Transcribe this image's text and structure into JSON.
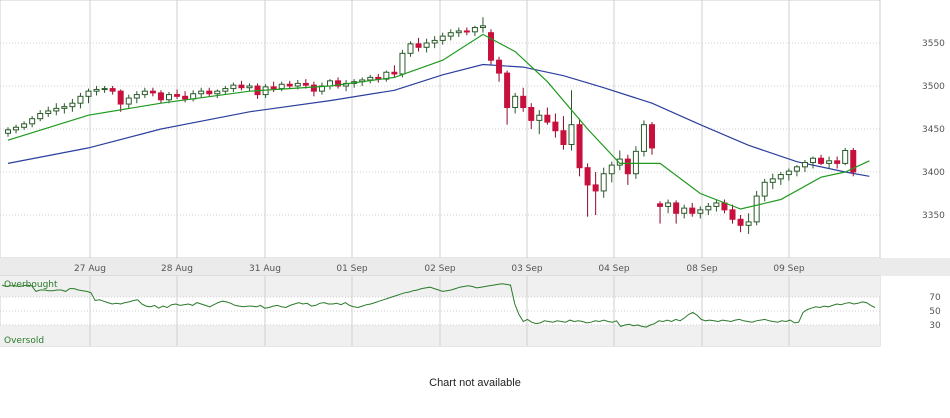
{
  "chart_data": [
    {
      "type": "candlestick",
      "title": "",
      "ylim": [
        3300,
        3600
      ],
      "y_ticks": [
        3350,
        3400,
        3450,
        3500,
        3550
      ],
      "x_tick_labels": [
        "27 Aug",
        "28 Aug",
        "31 Aug",
        "01 Sep",
        "02 Sep",
        "03 Sep",
        "04 Sep",
        "08 Sep",
        "09 Sep"
      ],
      "grid": true,
      "colors": {
        "up": "#2a8a2a",
        "down": "#c8103c",
        "ma_short": "#1f9a1f",
        "ma_long": "#2b3f9e"
      },
      "candles": [
        [
          3445,
          3452,
          3441,
          3449
        ],
        [
          3449,
          3455,
          3445,
          3452
        ],
        [
          3452,
          3459,
          3449,
          3456
        ],
        [
          3456,
          3465,
          3452,
          3462
        ],
        [
          3462,
          3472,
          3459,
          3468
        ],
        [
          3468,
          3476,
          3464,
          3471
        ],
        [
          3471,
          3480,
          3466,
          3474
        ],
        [
          3474,
          3480,
          3468,
          3476
        ],
        [
          3476,
          3485,
          3470,
          3480
        ],
        [
          3480,
          3492,
          3474,
          3488
        ],
        [
          3488,
          3497,
          3480,
          3494
        ],
        [
          3494,
          3500,
          3489,
          3496
        ],
        [
          3496,
          3500,
          3492,
          3497
        ],
        [
          3497,
          3500,
          3490,
          3494
        ],
        [
          3494,
          3496,
          3470,
          3479
        ],
        [
          3479,
          3490,
          3474,
          3486
        ],
        [
          3486,
          3494,
          3480,
          3490
        ],
        [
          3490,
          3498,
          3486,
          3494
        ],
        [
          3494,
          3498,
          3488,
          3492
        ],
        [
          3492,
          3495,
          3480,
          3484
        ],
        [
          3484,
          3493,
          3480,
          3490
        ],
        [
          3490,
          3496,
          3485,
          3488
        ],
        [
          3488,
          3494,
          3481,
          3485
        ],
        [
          3485,
          3495,
          3482,
          3491
        ],
        [
          3491,
          3498,
          3486,
          3494
        ],
        [
          3494,
          3498,
          3488,
          3491
        ],
        [
          3491,
          3496,
          3486,
          3494
        ],
        [
          3494,
          3500,
          3490,
          3497
        ],
        [
          3497,
          3504,
          3493,
          3501
        ],
        [
          3501,
          3506,
          3495,
          3498
        ],
        [
          3498,
          3503,
          3494,
          3500
        ],
        [
          3500,
          3503,
          3485,
          3490
        ],
        [
          3490,
          3502,
          3486,
          3499
        ],
        [
          3499,
          3505,
          3493,
          3497
        ],
        [
          3497,
          3505,
          3494,
          3502
        ],
        [
          3502,
          3506,
          3497,
          3500
        ],
        [
          3500,
          3507,
          3496,
          3503
        ],
        [
          3503,
          3508,
          3497,
          3501
        ],
        [
          3501,
          3505,
          3488,
          3494
        ],
        [
          3494,
          3504,
          3490,
          3500
        ],
        [
          3500,
          3508,
          3496,
          3506
        ],
        [
          3506,
          3510,
          3497,
          3500
        ],
        [
          3500,
          3507,
          3494,
          3503
        ],
        [
          3503,
          3508,
          3498,
          3505
        ],
        [
          3505,
          3510,
          3500,
          3507
        ],
        [
          3507,
          3513,
          3503,
          3510
        ],
        [
          3510,
          3514,
          3504,
          3508
        ],
        [
          3508,
          3518,
          3505,
          3516
        ],
        [
          3516,
          3524,
          3510,
          3514
        ],
        [
          3514,
          3542,
          3510,
          3538
        ],
        [
          3538,
          3552,
          3534,
          3549
        ],
        [
          3549,
          3556,
          3540,
          3545
        ],
        [
          3545,
          3555,
          3539,
          3550
        ],
        [
          3550,
          3558,
          3544,
          3553
        ],
        [
          3553,
          3562,
          3548,
          3558
        ],
        [
          3558,
          3566,
          3553,
          3562
        ],
        [
          3562,
          3568,
          3557,
          3564
        ],
        [
          3564,
          3568,
          3559,
          3563
        ],
        [
          3563,
          3570,
          3558,
          3568
        ],
        [
          3568,
          3580,
          3562,
          3570
        ],
        [
          3562,
          3566,
          3525,
          3530
        ],
        [
          3530,
          3534,
          3505,
          3515
        ],
        [
          3515,
          3518,
          3455,
          3475
        ],
        [
          3475,
          3492,
          3468,
          3488
        ],
        [
          3488,
          3498,
          3470,
          3475
        ],
        [
          3475,
          3480,
          3450,
          3460
        ],
        [
          3460,
          3472,
          3444,
          3466
        ],
        [
          3466,
          3475,
          3455,
          3458
        ],
        [
          3458,
          3468,
          3440,
          3448
        ],
        [
          3448,
          3465,
          3426,
          3432
        ],
        [
          3432,
          3495,
          3425,
          3455
        ],
        [
          3455,
          3462,
          3395,
          3405
        ],
        [
          3405,
          3410,
          3348,
          3385
        ],
        [
          3385,
          3400,
          3350,
          3378
        ],
        [
          3378,
          3405,
          3370,
          3398
        ],
        [
          3398,
          3412,
          3388,
          3408
        ],
        [
          3408,
          3425,
          3402,
          3415
        ],
        [
          3415,
          3420,
          3385,
          3398
        ],
        [
          3398,
          3430,
          3392,
          3424
        ],
        [
          3424,
          3460,
          3418,
          3455
        ],
        [
          3455,
          3458,
          3420,
          3428
        ],
        [
          3363,
          3366,
          3340,
          3360
        ],
        [
          3360,
          3368,
          3352,
          3364
        ],
        [
          3364,
          3367,
          3340,
          3352
        ],
        [
          3352,
          3362,
          3346,
          3358
        ],
        [
          3358,
          3364,
          3348,
          3352
        ],
        [
          3352,
          3360,
          3346,
          3356
        ],
        [
          3356,
          3364,
          3350,
          3360
        ],
        [
          3360,
          3368,
          3354,
          3364
        ],
        [
          3364,
          3368,
          3352,
          3356
        ],
        [
          3356,
          3362,
          3340,
          3345
        ],
        [
          3345,
          3350,
          3330,
          3338
        ],
        [
          3338,
          3352,
          3328,
          3342
        ],
        [
          3342,
          3378,
          3338,
          3372
        ],
        [
          3372,
          3392,
          3366,
          3388
        ],
        [
          3388,
          3398,
          3380,
          3392
        ],
        [
          3392,
          3400,
          3385,
          3397
        ],
        [
          3397,
          3404,
          3390,
          3401
        ],
        [
          3401,
          3408,
          3395,
          3406
        ],
        [
          3406,
          3414,
          3400,
          3411
        ],
        [
          3411,
          3418,
          3404,
          3416
        ],
        [
          3416,
          3420,
          3408,
          3410
        ],
        [
          3410,
          3418,
          3404,
          3413
        ],
        [
          3413,
          3418,
          3404,
          3410
        ],
        [
          3410,
          3428,
          3408,
          3425
        ],
        [
          3425,
          3428,
          3395,
          3400
        ]
      ],
      "ma_short": [
        [
          0,
          3437
        ],
        [
          10,
          3466
        ],
        [
          19,
          3480
        ],
        [
          30,
          3494
        ],
        [
          40,
          3500
        ],
        [
          48,
          3510
        ],
        [
          54,
          3530
        ],
        [
          59,
          3560
        ],
        [
          63,
          3540
        ],
        [
          67,
          3505
        ],
        [
          72,
          3450
        ],
        [
          76,
          3410
        ],
        [
          81,
          3410
        ],
        [
          86,
          3375
        ],
        [
          91,
          3357
        ],
        [
          96,
          3368
        ],
        [
          101,
          3394
        ],
        [
          104,
          3400
        ],
        [
          107,
          3413
        ]
      ],
      "ma_long": [
        [
          0,
          3410
        ],
        [
          10,
          3428
        ],
        [
          19,
          3450
        ],
        [
          30,
          3470
        ],
        [
          40,
          3483
        ],
        [
          48,
          3495
        ],
        [
          54,
          3513
        ],
        [
          59,
          3525
        ],
        [
          64,
          3522
        ],
        [
          69,
          3512
        ],
        [
          74,
          3498
        ],
        [
          80,
          3480
        ],
        [
          86,
          3455
        ],
        [
          92,
          3431
        ],
        [
          98,
          3412
        ],
        [
          104,
          3400
        ],
        [
          107,
          3395
        ]
      ]
    },
    {
      "type": "line",
      "ylim": [
        0,
        100
      ],
      "y_ticks": [
        30,
        50,
        70
      ],
      "overbought_label": "Overbought",
      "oversold_label": "Oversold",
      "overbought_level": 70,
      "oversold_level": 30,
      "line_color": "#2a7a2a",
      "values": [
        87,
        85,
        86,
        86,
        85,
        86,
        87,
        86,
        78,
        80,
        80,
        79,
        79,
        80,
        80,
        78,
        82,
        82,
        80,
        79,
        78,
        76,
        65,
        66,
        64,
        62,
        60,
        61,
        60,
        62,
        63,
        65,
        66,
        60,
        57,
        56,
        58,
        54,
        57,
        55,
        59,
        60,
        58,
        59,
        60,
        58,
        62,
        60,
        58,
        56,
        59,
        62,
        64,
        63,
        61,
        58,
        57,
        56,
        57,
        57,
        56,
        58,
        54,
        55,
        57,
        58,
        56,
        55,
        58,
        60,
        62,
        60,
        61,
        57,
        58,
        61,
        62,
        60,
        60,
        61,
        59,
        62,
        58,
        56,
        55,
        57,
        59,
        60,
        62,
        64,
        66,
        68,
        70,
        72,
        74,
        76,
        77,
        79,
        80,
        82,
        83,
        84,
        82,
        80,
        78,
        79,
        80,
        82,
        84,
        85,
        86,
        85,
        83,
        84,
        85,
        86,
        87,
        88,
        89,
        88,
        87,
        60,
        45,
        35,
        38,
        34,
        32,
        33,
        36,
        35,
        34,
        36,
        35,
        34,
        37,
        35,
        36,
        35,
        33,
        34,
        36,
        35,
        37,
        35,
        34,
        36,
        28,
        30,
        31,
        29,
        30,
        28,
        27,
        30,
        32,
        36,
        35,
        37,
        35,
        38,
        36,
        40,
        45,
        48,
        44,
        38,
        36,
        37,
        36,
        35,
        37,
        36,
        35,
        37,
        38,
        36,
        35,
        34,
        36,
        37,
        38,
        36,
        35,
        34,
        36,
        35,
        37,
        33,
        34,
        48,
        52,
        54,
        56,
        55,
        57,
        56,
        58,
        60,
        59,
        61,
        62,
        60,
        61,
        63,
        62,
        58,
        55
      ]
    }
  ],
  "notice": "Chart not available"
}
